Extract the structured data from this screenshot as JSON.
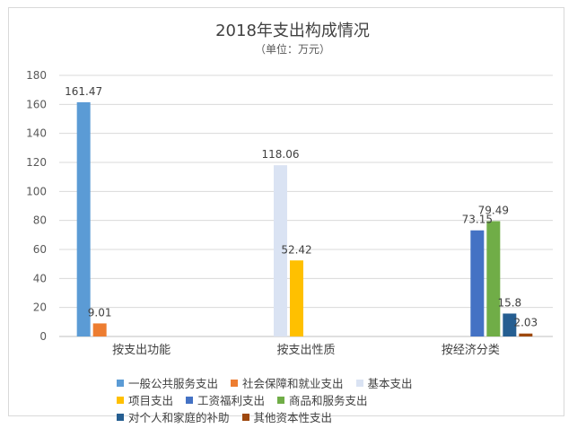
{
  "chart_data": {
    "type": "bar",
    "title": "2018年支出构成情况",
    "subtitle": "（单位：万元）",
    "categories": [
      "按支出功能",
      "按支出性质",
      "按经济分类"
    ],
    "ylim": [
      0,
      180
    ],
    "yticks": [
      0,
      20,
      40,
      60,
      80,
      100,
      120,
      140,
      160,
      180
    ],
    "grid": true,
    "legend_position": "bottom",
    "series": [
      {
        "name": "一般公共服务支出",
        "color": "#5b9bd5",
        "values": [
          161.47,
          null,
          null
        ]
      },
      {
        "name": "社会保障和就业支出",
        "color": "#ed7d31",
        "values": [
          9.01,
          null,
          null
        ]
      },
      {
        "name": "基本支出",
        "color": "#dae3f3",
        "values": [
          null,
          118.06,
          null
        ]
      },
      {
        "name": "项目支出",
        "color": "#ffc000",
        "values": [
          null,
          52.42,
          null
        ]
      },
      {
        "name": "工资福利支出",
        "color": "#4472c4",
        "values": [
          null,
          null,
          73.15
        ]
      },
      {
        "name": "商品和服务支出",
        "color": "#70ad47",
        "values": [
          null,
          null,
          79.49
        ]
      },
      {
        "name": "对个人和家庭的补助",
        "color": "#255e91",
        "values": [
          null,
          null,
          15.8
        ]
      },
      {
        "name": "其他资本性支出",
        "color": "#9e480e",
        "values": [
          null,
          null,
          2.03
        ]
      }
    ],
    "data_labels": [
      "161.47",
      "9.01",
      "118.06",
      "52.42",
      "73.15",
      "79.49",
      "15.8",
      "2.03"
    ]
  }
}
